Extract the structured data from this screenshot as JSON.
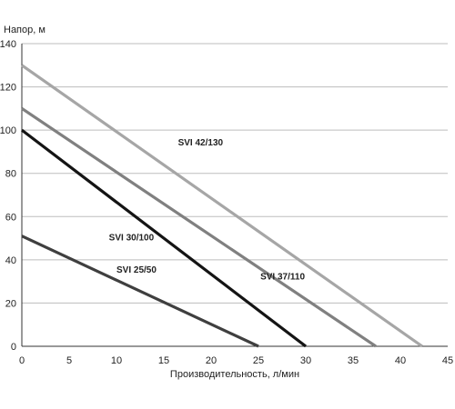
{
  "chart_data": {
    "type": "line",
    "title": "",
    "ylabel": "Напор, м",
    "xlabel": "Производительность, л/мин",
    "xlim": [
      0,
      45
    ],
    "ylim": [
      0,
      140
    ],
    "x_ticks": [
      0,
      5,
      10,
      15,
      20,
      25,
      30,
      35,
      40,
      45
    ],
    "y_ticks": [
      0,
      20,
      40,
      60,
      80,
      100,
      120,
      140
    ],
    "grid": "horizontal",
    "legend": "none",
    "series": [
      {
        "name": "SVI 42/130",
        "color": "#a6a6a6",
        "x": [
          0,
          42.3
        ],
        "y": [
          130,
          0
        ]
      },
      {
        "name": "SVI 37/110",
        "color": "#808080",
        "x": [
          0,
          37.4
        ],
        "y": [
          110,
          0
        ]
      },
      {
        "name": "SVI 30/100",
        "color": "#141414",
        "x": [
          0,
          30
        ],
        "y": [
          100,
          0
        ]
      },
      {
        "name": "SVI 25/50",
        "color": "#3f3f3f",
        "x": [
          0,
          25
        ],
        "y": [
          51,
          0
        ]
      }
    ],
    "annotations": [
      {
        "text": "SVI 42/130",
        "series": 0,
        "x": 16.5,
        "y": 93
      },
      {
        "text": "SVI 37/110",
        "series": 1,
        "x": 25.2,
        "y": 31
      },
      {
        "text": "SVI 30/100",
        "series": 2,
        "x": 9.2,
        "y": 49
      },
      {
        "text": "SVI 25/50",
        "series": 3,
        "x": 10,
        "y": 34
      }
    ]
  }
}
